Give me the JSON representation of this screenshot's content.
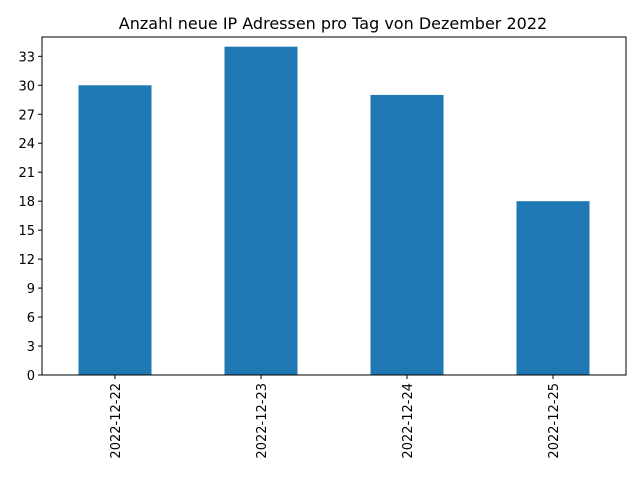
{
  "chart_data": {
    "type": "bar",
    "title": "Anzahl neue IP Adressen pro Tag von Dezember 2022",
    "xlabel": "",
    "ylabel": "",
    "categories": [
      "2022-12-22",
      "2022-12-23",
      "2022-12-24",
      "2022-12-25"
    ],
    "values": [
      30,
      34,
      29,
      18
    ],
    "ylim": [
      0,
      35
    ],
    "yticks": [
      0,
      3,
      6,
      9,
      12,
      15,
      18,
      21,
      24,
      27,
      30,
      33
    ],
    "grid": false,
    "bar_color": "#1f77b4"
  }
}
